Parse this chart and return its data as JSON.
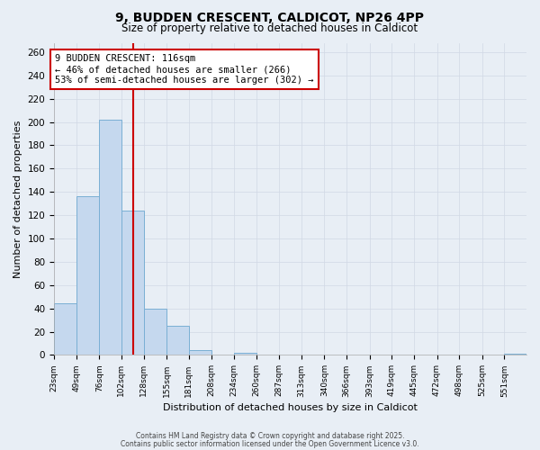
{
  "title": "9, BUDDEN CRESCENT, CALDICOT, NP26 4PP",
  "subtitle": "Size of property relative to detached houses in Caldicot",
  "xlabel": "Distribution of detached houses by size in Caldicot",
  "ylabel": "Number of detached properties",
  "bar_values": [
    44,
    136,
    202,
    124,
    40,
    25,
    4,
    0,
    2,
    0,
    0,
    0,
    0,
    0,
    0,
    0,
    0,
    0,
    0,
    0,
    1
  ],
  "bin_edges": [
    23,
    49,
    76,
    102,
    128,
    155,
    181,
    208,
    234,
    260,
    287,
    313,
    340,
    366,
    393,
    419,
    445,
    472,
    498,
    525,
    551,
    577
  ],
  "tick_labels": [
    "23sqm",
    "49sqm",
    "76sqm",
    "102sqm",
    "128sqm",
    "155sqm",
    "181sqm",
    "208sqm",
    "234sqm",
    "260sqm",
    "287sqm",
    "313sqm",
    "340sqm",
    "366sqm",
    "393sqm",
    "419sqm",
    "445sqm",
    "472sqm",
    "498sqm",
    "525sqm",
    "551sqm"
  ],
  "bar_color": "#c5d8ee",
  "bar_edge_color": "#7aafd4",
  "property_size": 116,
  "property_label": "9 BUDDEN CRESCENT: 116sqm",
  "pct_smaller": 46,
  "count_smaller": 266,
  "pct_larger": 53,
  "count_larger": 302,
  "vline_color": "#cc0000",
  "annotation_box_color": "#cc0000",
  "ylim_max": 268,
  "yticks": [
    0,
    20,
    40,
    60,
    80,
    100,
    120,
    140,
    160,
    180,
    200,
    220,
    240,
    260
  ],
  "grid_color": "#d0d8e4",
  "bg_color": "#e8eef5",
  "footer1": "Contains HM Land Registry data © Crown copyright and database right 2025.",
  "footer2": "Contains public sector information licensed under the Open Government Licence v3.0."
}
